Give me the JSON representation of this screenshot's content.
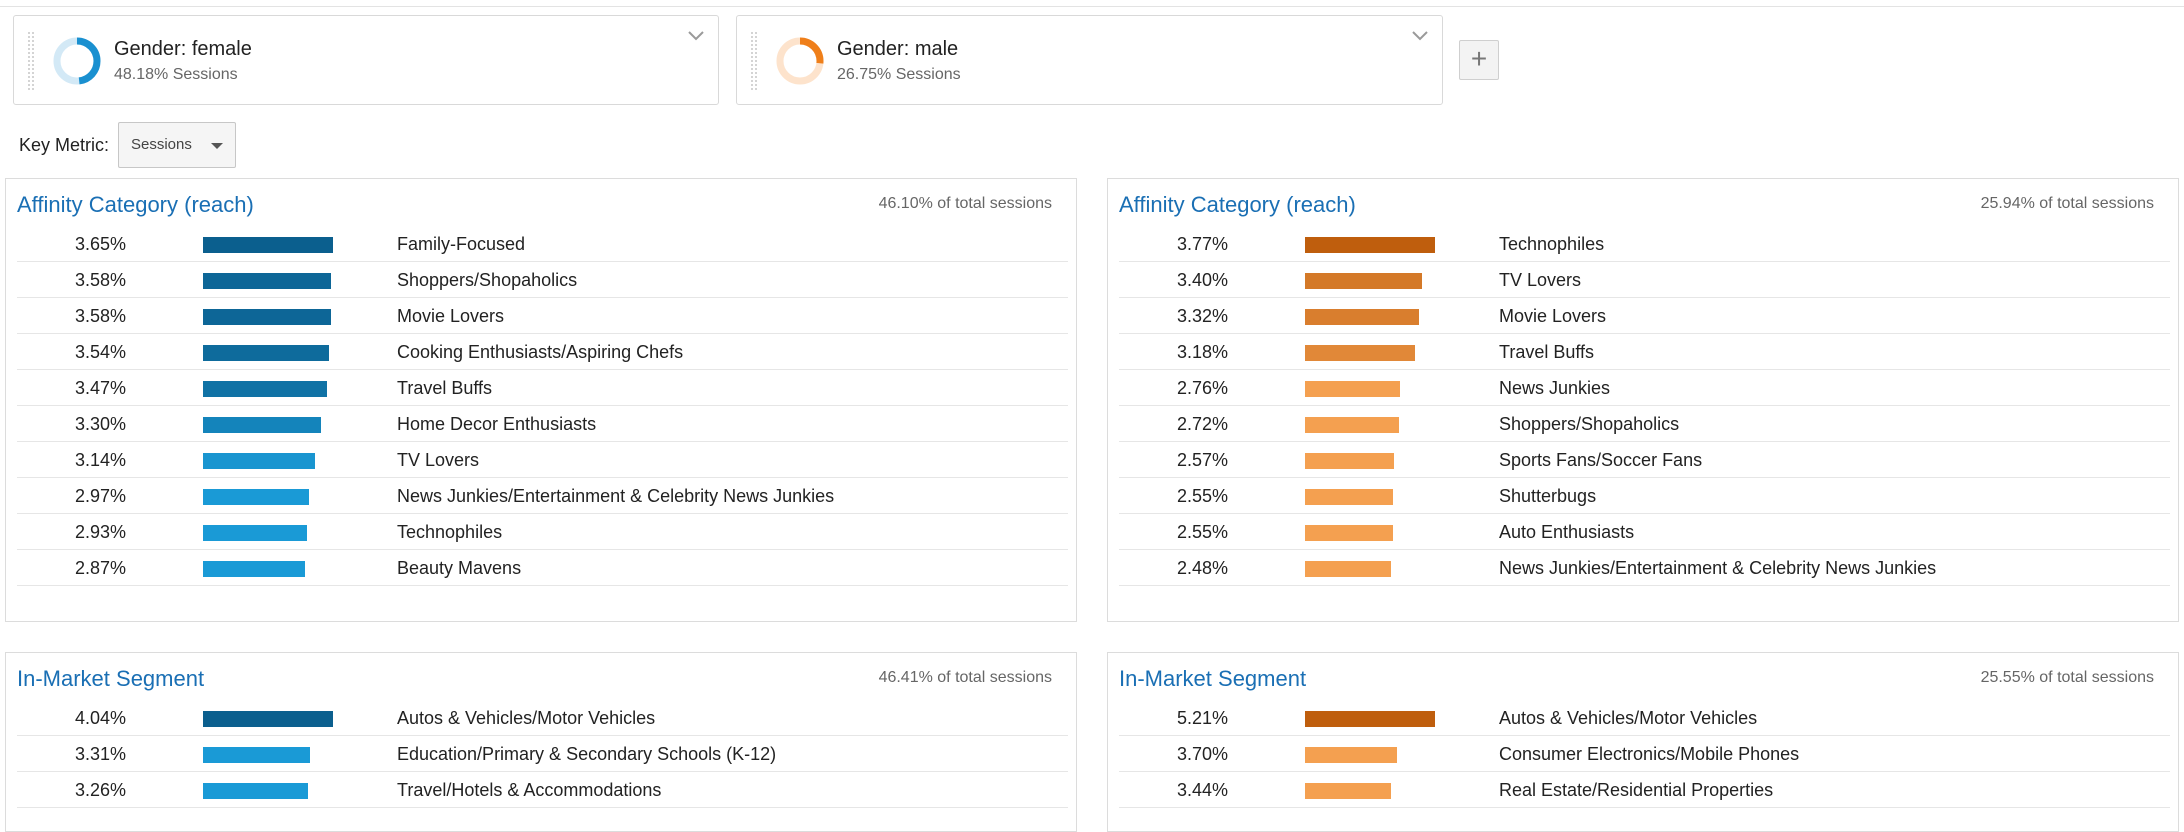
{
  "segments": [
    {
      "name": "Gender: female",
      "sessions": "48.18% Sessions",
      "share": 0.4818,
      "color": "#1a90d0",
      "track": "#d3e9f6"
    },
    {
      "name": "Gender: male",
      "sessions": "26.75% Sessions",
      "share": 0.2675,
      "color": "#ef7f1a",
      "track": "#fde3cc"
    }
  ],
  "add_button": "+",
  "key_metric": {
    "label": "Key Metric:",
    "value": "Sessions"
  },
  "panels": [
    {
      "title": "Affinity Category (reach)",
      "total": "46.10% of total sessions",
      "scheme": [
        "#0b5f8e",
        "#1a9ad6"
      ],
      "rows": [
        {
          "pct": "3.65%",
          "value": 3.65,
          "label": "Family-Focused"
        },
        {
          "pct": "3.58%",
          "value": 3.58,
          "label": "Shoppers/Shopaholics"
        },
        {
          "pct": "3.58%",
          "value": 3.58,
          "label": "Movie Lovers"
        },
        {
          "pct": "3.54%",
          "value": 3.54,
          "label": "Cooking Enthusiasts/Aspiring Chefs"
        },
        {
          "pct": "3.47%",
          "value": 3.47,
          "label": "Travel Buffs"
        },
        {
          "pct": "3.30%",
          "value": 3.3,
          "label": "Home Decor Enthusiasts"
        },
        {
          "pct": "3.14%",
          "value": 3.14,
          "label": "TV Lovers"
        },
        {
          "pct": "2.97%",
          "value": 2.97,
          "label": "News Junkies/Entertainment & Celebrity News Junkies"
        },
        {
          "pct": "2.93%",
          "value": 2.93,
          "label": "Technophiles"
        },
        {
          "pct": "2.87%",
          "value": 2.87,
          "label": "Beauty Mavens"
        }
      ]
    },
    {
      "title": "Affinity Category (reach)",
      "total": "25.94% of total sessions",
      "scheme": [
        "#bf5e0d",
        "#f4a050"
      ],
      "rows": [
        {
          "pct": "3.77%",
          "value": 3.77,
          "label": "Technophiles"
        },
        {
          "pct": "3.40%",
          "value": 3.4,
          "label": "TV Lovers"
        },
        {
          "pct": "3.32%",
          "value": 3.32,
          "label": "Movie Lovers"
        },
        {
          "pct": "3.18%",
          "value": 3.18,
          "label": "Travel Buffs"
        },
        {
          "pct": "2.76%",
          "value": 2.76,
          "label": "News Junkies"
        },
        {
          "pct": "2.72%",
          "value": 2.72,
          "label": "Shoppers/Shopaholics"
        },
        {
          "pct": "2.57%",
          "value": 2.57,
          "label": "Sports Fans/Soccer Fans"
        },
        {
          "pct": "2.55%",
          "value": 2.55,
          "label": "Shutterbugs"
        },
        {
          "pct": "2.55%",
          "value": 2.55,
          "label": "Auto Enthusiasts"
        },
        {
          "pct": "2.48%",
          "value": 2.48,
          "label": "News Junkies/Entertainment & Celebrity News Junkies"
        }
      ]
    },
    {
      "title": "In-Market Segment",
      "total": "46.41% of total sessions",
      "scheme": [
        "#0b5f8e",
        "#1a9ad6"
      ],
      "rows": [
        {
          "pct": "4.04%",
          "value": 4.04,
          "label": "Autos & Vehicles/Motor Vehicles"
        },
        {
          "pct": "3.31%",
          "value": 3.31,
          "label": "Education/Primary & Secondary Schools (K-12)"
        },
        {
          "pct": "3.26%",
          "value": 3.26,
          "label": "Travel/Hotels & Accommodations"
        }
      ]
    },
    {
      "title": "In-Market Segment",
      "total": "25.55% of total sessions",
      "scheme": [
        "#bf5e0d",
        "#f4a050"
      ],
      "rows": [
        {
          "pct": "5.21%",
          "value": 5.21,
          "label": "Autos & Vehicles/Motor Vehicles"
        },
        {
          "pct": "3.70%",
          "value": 3.7,
          "label": "Consumer Electronics/Mobile Phones"
        },
        {
          "pct": "3.44%",
          "value": 3.44,
          "label": "Real Estate/Residential Properties"
        }
      ]
    }
  ]
}
